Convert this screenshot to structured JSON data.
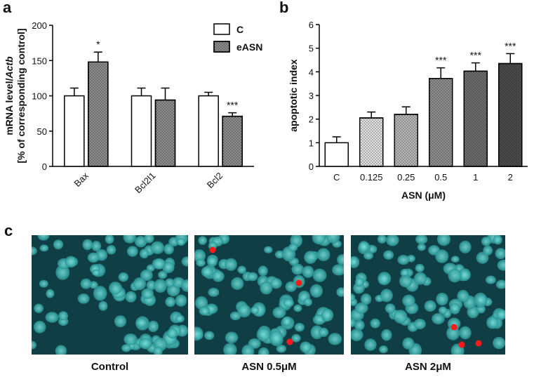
{
  "chart_data": [
    {
      "type": "bar",
      "panel_label": "a",
      "ylabel": [
        [
          "mRNA level/",
          "Actb"
        ],
        "[% of corresponding control]"
      ],
      "categories": [
        "Bax",
        "Bcl2l1",
        "Bcl2"
      ],
      "series": [
        {
          "name": "C",
          "color": "#ffffff",
          "values": [
            100,
            100,
            100
          ],
          "errors": [
            11,
            11,
            5
          ],
          "value_annotations": [
            null,
            null,
            null
          ]
        },
        {
          "name": "eASN",
          "color": "#8c8c8c",
          "values": [
            148,
            94,
            71
          ],
          "errors": [
            14,
            17,
            5
          ],
          "value_annotations": [
            "*",
            null,
            "***"
          ]
        }
      ],
      "ylim": [
        0,
        200
      ],
      "yticks": [
        0,
        50,
        100,
        150,
        200
      ],
      "legend": "upper right"
    },
    {
      "type": "bar",
      "panel_label": "b",
      "ylabel": "apoptotic index",
      "xlabel": "ASN (μM)",
      "categories": [
        "C",
        "0.125",
        "0.25",
        "0.5",
        "1",
        "2"
      ],
      "values": [
        1.0,
        2.05,
        2.2,
        3.72,
        4.03,
        4.35
      ],
      "errors": [
        0.25,
        0.25,
        0.32,
        0.45,
        0.35,
        0.42
      ],
      "value_annotations": [
        null,
        null,
        null,
        "***",
        "***",
        "***"
      ],
      "colors": [
        "#ffffff",
        "#e2e2e2",
        "#b8b8b8",
        "#8f8f8f",
        "#6c6c6c",
        "#4a4a4a"
      ],
      "ylim": [
        0,
        6
      ],
      "yticks": [
        0,
        1,
        2,
        3,
        4,
        5,
        6
      ]
    }
  ],
  "images": {
    "panel_label": "c",
    "captions": [
      "Control",
      "ASN 0.5μM",
      "ASN 2μM"
    ]
  }
}
